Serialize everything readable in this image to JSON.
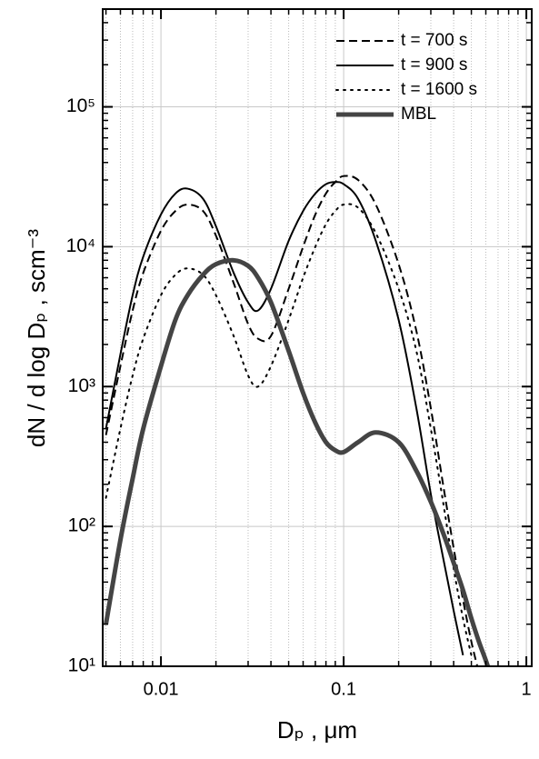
{
  "chart_data": {
    "type": "line",
    "xlabel": "Dₚ ,  μm",
    "ylabel": "dN / d log Dₚ ,  scm⁻³",
    "xscale": "log",
    "yscale": "log",
    "xlim": [
      0.0048,
      1.07
    ],
    "ylim": [
      10,
      500000
    ],
    "xticks": [
      0.01,
      0.1,
      1
    ],
    "yticks": [
      {
        "value": 10,
        "label": "10¹"
      },
      {
        "value": 100,
        "label": "10²"
      },
      {
        "value": 1000,
        "label": "10³"
      },
      {
        "value": 10000,
        "label": "10⁴"
      },
      {
        "value": 100000,
        "label": "10⁵"
      }
    ],
    "grid": true,
    "minor_grid": true,
    "legend": "upper right",
    "x": [
      0.005,
      0.006,
      0.007,
      0.008,
      0.01,
      0.012,
      0.014,
      0.017,
      0.02,
      0.025,
      0.03,
      0.034,
      0.04,
      0.05,
      0.06,
      0.07,
      0.08,
      0.09,
      0.1,
      0.12,
      0.15,
      0.2,
      0.25,
      0.3,
      0.35,
      0.4,
      0.45,
      0.5,
      0.55,
      0.6,
      0.65
    ],
    "series": [
      {
        "name": "t = 700 s",
        "color": "#000000",
        "style": "dashed",
        "width": 2,
        "values": [
          450,
          1400,
          3500,
          6500,
          13000,
          18000,
          20000,
          18000,
          12000,
          5500,
          2800,
          2200,
          2300,
          5000,
          10000,
          17000,
          24000,
          29000,
          32000,
          30000,
          20000,
          7500,
          2500,
          700,
          200,
          70,
          30,
          15,
          9,
          null,
          null
        ]
      },
      {
        "name": "t = 900 s",
        "color": "#000000",
        "style": "solid",
        "width": 2,
        "values": [
          500,
          1700,
          4500,
          8500,
          17000,
          24000,
          26000,
          22000,
          14000,
          6500,
          4000,
          3500,
          5000,
          11000,
          18000,
          24000,
          28000,
          29000,
          28000,
          22000,
          11000,
          3000,
          700,
          170,
          60,
          25,
          12,
          null,
          null,
          null,
          null
        ]
      },
      {
        "name": "t = 1600 s",
        "color": "#000000",
        "style": "dotted",
        "width": 2,
        "values": [
          160,
          500,
          1200,
          2200,
          4500,
          6300,
          7000,
          6300,
          4500,
          2300,
          1200,
          1000,
          1400,
          3000,
          6000,
          10000,
          14500,
          18000,
          20000,
          19000,
          12500,
          5000,
          1800,
          500,
          150,
          50,
          22,
          12,
          null,
          null,
          null
        ]
      },
      {
        "name": "MBL",
        "color": "#444444",
        "style": "solid",
        "width": 5,
        "values": [
          20,
          80,
          220,
          500,
          1400,
          3000,
          4500,
          6300,
          7500,
          8000,
          7300,
          6000,
          4000,
          1800,
          900,
          550,
          400,
          350,
          340,
          400,
          470,
          400,
          250,
          150,
          90,
          55,
          35,
          22,
          15,
          11,
          8
        ]
      }
    ]
  }
}
